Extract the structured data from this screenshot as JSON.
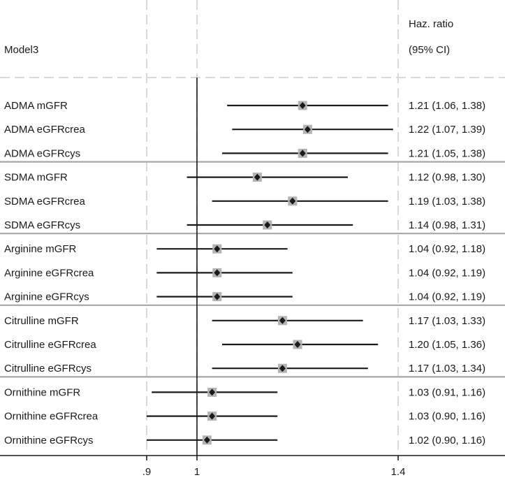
{
  "chart_data": {
    "type": "forest",
    "model_label": "Model3",
    "ratio_header_line1": "Haz. ratio",
    "ratio_header_line2": "(95% CI)",
    "reference_value": 1,
    "xlim": [
      0.8,
      1.42
    ],
    "x_ticks": [
      {
        "value": 0.9,
        "label": ".9"
      },
      {
        "value": 1,
        "label": "1"
      },
      {
        "value": 1.4,
        "label": "1.4"
      }
    ],
    "groups": [
      {
        "rows": [
          {
            "label": "ADMA mGFR",
            "hr": 1.21,
            "lo": 1.06,
            "hi": 1.38,
            "text": "1.21 (1.06, 1.38)"
          },
          {
            "label": "ADMA eGFRcrea",
            "hr": 1.22,
            "lo": 1.07,
            "hi": 1.39,
            "text": "1.22 (1.07, 1.39)"
          },
          {
            "label": "ADMA eGFRcys",
            "hr": 1.21,
            "lo": 1.05,
            "hi": 1.38,
            "text": "1.21 (1.05, 1.38)"
          }
        ]
      },
      {
        "rows": [
          {
            "label": "SDMA mGFR",
            "hr": 1.12,
            "lo": 0.98,
            "hi": 1.3,
            "text": "1.12 (0.98, 1.30)"
          },
          {
            "label": "SDMA eGFRcrea",
            "hr": 1.19,
            "lo": 1.03,
            "hi": 1.38,
            "text": "1.19 (1.03, 1.38)"
          },
          {
            "label": "SDMA eGFRcys",
            "hr": 1.14,
            "lo": 0.98,
            "hi": 1.31,
            "text": "1.14 (0.98, 1.31)"
          }
        ]
      },
      {
        "rows": [
          {
            "label": "Arginine mGFR",
            "hr": 1.04,
            "lo": 0.92,
            "hi": 1.18,
            "text": "1.04 (0.92, 1.18)"
          },
          {
            "label": "Arginine eGFRcrea",
            "hr": 1.04,
            "lo": 0.92,
            "hi": 1.19,
            "text": "1.04 (0.92, 1.19)"
          },
          {
            "label": "Arginine eGFRcys",
            "hr": 1.04,
            "lo": 0.92,
            "hi": 1.19,
            "text": "1.04 (0.92, 1.19)"
          }
        ]
      },
      {
        "rows": [
          {
            "label": "Citrulline mGFR",
            "hr": 1.17,
            "lo": 1.03,
            "hi": 1.33,
            "text": "1.17 (1.03, 1.33)"
          },
          {
            "label": "Citrulline eGFRcrea",
            "hr": 1.2,
            "lo": 1.05,
            "hi": 1.36,
            "text": "1.20 (1.05, 1.36)"
          },
          {
            "label": "Citrulline eGFRcys",
            "hr": 1.17,
            "lo": 1.03,
            "hi": 1.34,
            "text": "1.17 (1.03, 1.34)"
          }
        ]
      },
      {
        "rows": [
          {
            "label": "Ornithine mGFR",
            "hr": 1.03,
            "lo": 0.91,
            "hi": 1.16,
            "text": "1.03 (0.91, 1.16)"
          },
          {
            "label": "Ornithine eGFRcrea",
            "hr": 1.03,
            "lo": 0.9,
            "hi": 1.16,
            "text": "1.03 (0.90, 1.16)"
          },
          {
            "label": "Ornithine eGFRcys",
            "hr": 1.02,
            "lo": 0.9,
            "hi": 1.16,
            "text": "1.02 (0.90, 1.16)"
          }
        ]
      }
    ],
    "colors": {
      "ci_line": "#1a1a1a",
      "marker": "#1a1a1a",
      "marker_box": "#b3b3b3",
      "group_separator": "#a6a6a6",
      "dashed_guides": "#d9d9d9",
      "reference_line": "#1a1a1a"
    }
  }
}
